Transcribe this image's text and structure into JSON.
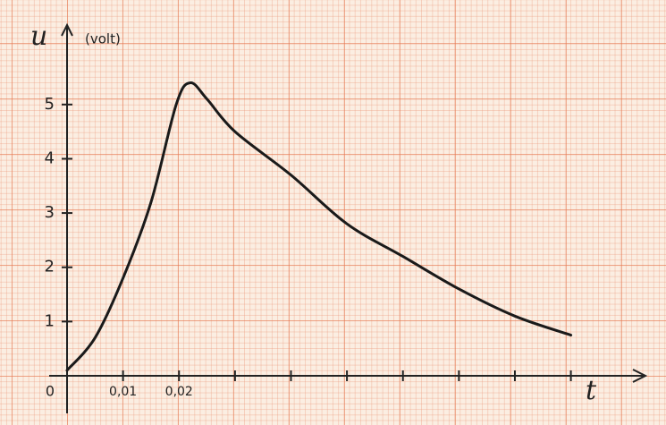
{
  "chart_data": {
    "type": "line",
    "y_label": "u",
    "y_unit": "(volt)",
    "x_label": "t",
    "x": [
      0,
      0.005,
      0.01,
      0.015,
      0.0195,
      0.022,
      0.025,
      0.03,
      0.04,
      0.05,
      0.06,
      0.07,
      0.08,
      0.09
    ],
    "series": [
      {
        "color": "#1a1a1a",
        "values": [
          0.1,
          0.7,
          1.8,
          3.2,
          5.0,
          5.4,
          5.1,
          4.5,
          3.7,
          2.8,
          2.2,
          1.6,
          1.1,
          0.75
        ]
      }
    ],
    "xlim": [
      0,
      0.103
    ],
    "ylim": [
      0,
      6.3
    ],
    "xticks": [
      0,
      {
        "value": 0.01,
        "label": "0,01"
      },
      {
        "value": 0.02,
        "label": "0,02"
      },
      {
        "value": 0.03,
        "label": null
      },
      {
        "value": 0.04,
        "label": null
      },
      {
        "value": 0.05,
        "label": null
      },
      {
        "value": 0.06,
        "label": null
      },
      {
        "value": 0.07,
        "label": null
      },
      {
        "value": 0.08,
        "label": null
      },
      {
        "value": 0.09,
        "label": null
      }
    ],
    "yticks": [
      1,
      2,
      3,
      4,
      5
    ]
  }
}
